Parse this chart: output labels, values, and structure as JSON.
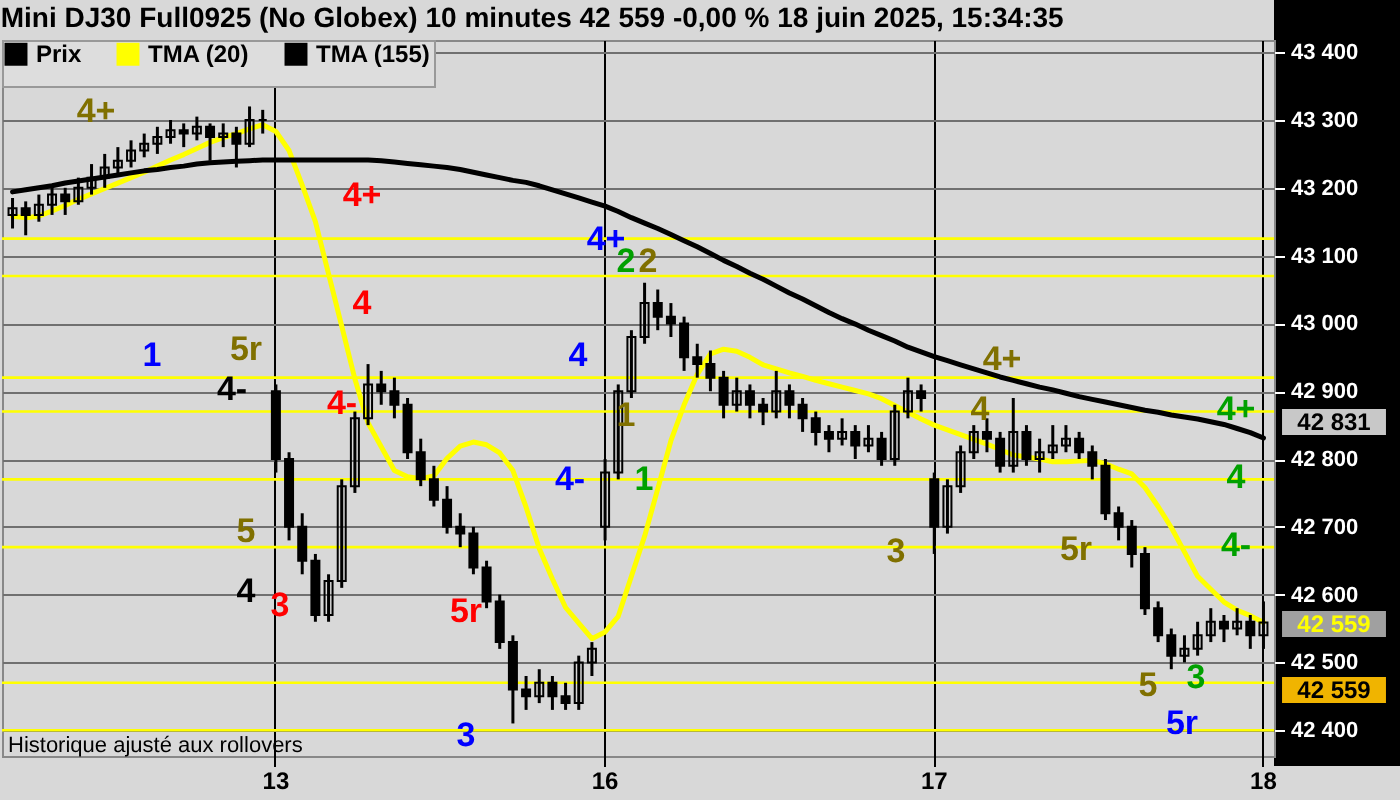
{
  "chart_data": {
    "type": "candlestick",
    "title": "Mini DJ30 Full0925 (No Globex) 10 minutes 42 559 -0,00 % 18 juin 2025, 15:34:35",
    "categories": [
      null,
      null,
      null,
      null,
      null,
      null,
      null,
      null,
      null,
      null,
      null,
      null,
      null,
      null,
      null,
      null,
      null,
      null,
      null,
      null,
      "13",
      null,
      null,
      null,
      null,
      null,
      null,
      null,
      null,
      null,
      null,
      null,
      null,
      null,
      null,
      null,
      null,
      null,
      null,
      null,
      null,
      null,
      null,
      null,
      null,
      "16",
      null,
      null,
      null,
      null,
      null,
      null,
      null,
      null,
      null,
      null,
      null,
      null,
      null,
      null,
      null,
      null,
      null,
      null,
      null,
      null,
      null,
      null,
      null,
      null,
      "17",
      null,
      null,
      null,
      null,
      null,
      null,
      null,
      null,
      null,
      null,
      null,
      null,
      null,
      null,
      null,
      null,
      null,
      null,
      null,
      null,
      null,
      null,
      null,
      null,
      "18"
    ],
    "series": [
      {
        "name": "Prix",
        "type": "candlestick",
        "color": "#000000",
        "ohlc": [
          [
            43160,
            43185,
            43140,
            43170
          ],
          [
            43170,
            43180,
            43130,
            43160
          ],
          [
            43160,
            43190,
            43150,
            43175
          ],
          [
            43175,
            43205,
            43160,
            43190
          ],
          [
            43190,
            43200,
            43160,
            43180
          ],
          [
            43180,
            43215,
            43175,
            43200
          ],
          [
            43200,
            43235,
            43190,
            43215
          ],
          [
            43215,
            43250,
            43200,
            43230
          ],
          [
            43230,
            43260,
            43220,
            43240
          ],
          [
            43240,
            43270,
            43230,
            43255
          ],
          [
            43255,
            43280,
            43245,
            43265
          ],
          [
            43265,
            43290,
            43250,
            43275
          ],
          [
            43275,
            43300,
            43265,
            43285
          ],
          [
            43285,
            43295,
            43260,
            43280
          ],
          [
            43280,
            43305,
            43270,
            43290
          ],
          [
            43290,
            43295,
            43240,
            43275
          ],
          [
            43275,
            43295,
            43260,
            43280
          ],
          [
            43280,
            43290,
            43230,
            43265
          ],
          [
            43265,
            43320,
            43260,
            43300
          ],
          [
            43300,
            43315,
            43280,
            43300
          ],
          [
            42900,
            42910,
            42780,
            42800
          ],
          [
            42800,
            42810,
            42680,
            42700
          ],
          [
            42700,
            42720,
            42630,
            42650
          ],
          [
            42650,
            42660,
            42560,
            42570
          ],
          [
            42570,
            42630,
            42560,
            42620
          ],
          [
            42620,
            42770,
            42610,
            42760
          ],
          [
            42760,
            42870,
            42750,
            42860
          ],
          [
            42860,
            42940,
            42850,
            42910
          ],
          [
            42910,
            42930,
            42880,
            42900
          ],
          [
            42900,
            42920,
            42860,
            42880
          ],
          [
            42880,
            42890,
            42800,
            42810
          ],
          [
            42810,
            42830,
            42760,
            42770
          ],
          [
            42770,
            42790,
            42730,
            42740
          ],
          [
            42740,
            42760,
            42690,
            42700
          ],
          [
            42700,
            42720,
            42670,
            42690
          ],
          [
            42690,
            42700,
            42630,
            42640
          ],
          [
            42640,
            42650,
            42580,
            42590
          ],
          [
            42590,
            42600,
            42520,
            42530
          ],
          [
            42530,
            42540,
            42410,
            42460
          ],
          [
            42460,
            42480,
            42430,
            42450
          ],
          [
            42450,
            42490,
            42440,
            42470
          ],
          [
            42470,
            42480,
            42430,
            42450
          ],
          [
            42450,
            42470,
            42430,
            42440
          ],
          [
            42440,
            42510,
            42430,
            42500
          ],
          [
            42500,
            42530,
            42480,
            42520
          ],
          [
            42700,
            42800,
            42680,
            42780
          ],
          [
            42780,
            42910,
            42770,
            42900
          ],
          [
            42900,
            42990,
            42890,
            42980
          ],
          [
            42980,
            43060,
            42970,
            43030
          ],
          [
            43030,
            43050,
            42990,
            43010
          ],
          [
            43010,
            43030,
            42980,
            43000
          ],
          [
            43000,
            43010,
            42930,
            42950
          ],
          [
            42950,
            42970,
            42920,
            42940
          ],
          [
            42940,
            42960,
            42900,
            42920
          ],
          [
            42920,
            42930,
            42860,
            42880
          ],
          [
            42880,
            42920,
            42870,
            42900
          ],
          [
            42900,
            42910,
            42860,
            42880
          ],
          [
            42880,
            42890,
            42850,
            42870
          ],
          [
            42870,
            42930,
            42860,
            42900
          ],
          [
            42900,
            42910,
            42860,
            42880
          ],
          [
            42880,
            42890,
            42840,
            42860
          ],
          [
            42860,
            42870,
            42820,
            42840
          ],
          [
            42840,
            42850,
            42810,
            42830
          ],
          [
            42830,
            42860,
            42820,
            42840
          ],
          [
            42840,
            42850,
            42800,
            42820
          ],
          [
            42820,
            42850,
            42810,
            42830
          ],
          [
            42830,
            42840,
            42790,
            42800
          ],
          [
            42800,
            42880,
            42790,
            42870
          ],
          [
            42870,
            42920,
            42860,
            42900
          ],
          [
            42900,
            42910,
            42870,
            42890
          ],
          [
            42770,
            42780,
            42660,
            42700
          ],
          [
            42700,
            42770,
            42690,
            42760
          ],
          [
            42760,
            42820,
            42750,
            42810
          ],
          [
            42810,
            42850,
            42800,
            42840
          ],
          [
            42840,
            42860,
            42810,
            42830
          ],
          [
            42830,
            42840,
            42780,
            42790
          ],
          [
            42790,
            42890,
            42780,
            42840
          ],
          [
            42840,
            42850,
            42790,
            42800
          ],
          [
            42800,
            42830,
            42780,
            42810
          ],
          [
            42810,
            42850,
            42800,
            42820
          ],
          [
            42820,
            42850,
            42810,
            42830
          ],
          [
            42830,
            42840,
            42800,
            42810
          ],
          [
            42810,
            42820,
            42770,
            42790
          ],
          [
            42790,
            42800,
            42710,
            42720
          ],
          [
            42720,
            42730,
            42680,
            42700
          ],
          [
            42700,
            42710,
            42640,
            42660
          ],
          [
            42660,
            42670,
            42570,
            42580
          ],
          [
            42580,
            42590,
            42530,
            42540
          ],
          [
            42540,
            42550,
            42490,
            42510
          ],
          [
            42510,
            42540,
            42500,
            42520
          ],
          [
            42520,
            42560,
            42510,
            42540
          ],
          [
            42540,
            42580,
            42530,
            42560
          ],
          [
            42560,
            42570,
            42530,
            42550
          ],
          [
            42550,
            42580,
            42540,
            42560
          ],
          [
            42560,
            42570,
            42520,
            42540
          ],
          [
            42540,
            42590,
            42520,
            42559
          ]
        ]
      },
      {
        "name": "TMA (20)",
        "type": "line",
        "color": "#ffff00",
        "values": [
          43158,
          43156,
          43158,
          43166,
          43174,
          43183,
          43191,
          43199,
          43207,
          43215,
          43223,
          43232,
          43241,
          43249,
          43258,
          43267,
          43274,
          43280,
          43287,
          43293,
          43283,
          43255,
          43204,
          43150,
          43073,
          42996,
          42918,
          42853,
          42818,
          42783,
          42774,
          42771,
          42775,
          42801,
          42819,
          42825,
          42821,
          42809,
          42783,
          42729,
          42668,
          42623,
          42581,
          42558,
          42535,
          42545,
          42568,
          42627,
          42686,
          42756,
          42827,
          42880,
          42925,
          42955,
          42962,
          42959,
          42950,
          42939,
          42933,
          42927,
          42922,
          42916,
          42911,
          42906,
          42901,
          42896,
          42889,
          42879,
          42869,
          42859,
          42850,
          42843,
          42836,
          42829,
          42822,
          42814,
          42806,
          42803,
          42800,
          42796,
          42796,
          42797,
          42798,
          42793,
          42785,
          42778,
          42758,
          42730,
          42699,
          42663,
          42627,
          42608,
          42589,
          42577,
          42569,
          42559
        ]
      },
      {
        "name": "TMA (155)",
        "type": "line",
        "color": "#000000",
        "values": [
          43194,
          43197,
          43200,
          43203,
          43207,
          43210,
          43213,
          43216,
          43219,
          43222,
          43225,
          43227,
          43230,
          43232,
          43235,
          43237,
          43238,
          43239,
          43240,
          43241,
          43241,
          43241,
          43241,
          43241,
          43241,
          43241,
          43241,
          43241,
          43240,
          43238,
          43236,
          43234,
          43232,
          43230,
          43227,
          43223,
          43219,
          43215,
          43211,
          43208,
          43203,
          43197,
          43191,
          43185,
          43179,
          43173,
          43165,
          43156,
          43148,
          43140,
          43131,
          43122,
          43113,
          43103,
          43093,
          43084,
          43074,
          43065,
          43055,
          43045,
          43036,
          43026,
          43016,
          43007,
          42999,
          42990,
          42982,
          42974,
          42965,
          42958,
          42951,
          42945,
          42939,
          42933,
          42927,
          42921,
          42916,
          42911,
          42906,
          42902,
          42897,
          42892,
          42888,
          42884,
          42880,
          42876,
          42872,
          42869,
          42865,
          42862,
          42859,
          42855,
          42851,
          42845,
          42839,
          42831
        ]
      }
    ],
    "ylim": [
      42362,
      43418
    ],
    "yticks": [
      {
        "value": 42400,
        "label": "42 400"
      },
      {
        "value": 42500,
        "label": "42 500"
      },
      {
        "value": 42600,
        "label": "42 600"
      },
      {
        "value": 42700,
        "label": "42 700"
      },
      {
        "value": 42800,
        "label": "42 800"
      },
      {
        "value": 42900,
        "label": "42 900"
      },
      {
        "value": 43000,
        "label": "43 000"
      },
      {
        "value": 43100,
        "label": "43 100"
      },
      {
        "value": 43200,
        "label": "43 200"
      },
      {
        "value": 43300,
        "label": "43 300"
      },
      {
        "value": 43400,
        "label": "43 400"
      }
    ],
    "grid": true,
    "legend": "top left",
    "ref_lines": [
      {
        "axis": "y",
        "value": 43125,
        "color": "#ffff00"
      },
      {
        "axis": "y",
        "value": 43070,
        "color": "#ffff00"
      },
      {
        "axis": "y",
        "value": 42920,
        "color": "#ffff00"
      },
      {
        "axis": "y",
        "value": 42870,
        "color": "#ffff00"
      },
      {
        "axis": "y",
        "value": 42770,
        "color": "#ffff00"
      },
      {
        "axis": "y",
        "value": 42670,
        "color": "#ffff00"
      },
      {
        "axis": "y",
        "value": 42470,
        "color": "#ffff00"
      },
      {
        "axis": "y",
        "value": 42400,
        "color": "#ffff00"
      }
    ],
    "annotations": [
      "Historique ajusté aux rollovers",
      "4+",
      "4+",
      "4",
      "1",
      "5r",
      "4-",
      "4-",
      "5",
      "4",
      "3",
      "5r",
      "3",
      "4+",
      "2",
      "2",
      "4",
      "1",
      "4-",
      "1",
      "4+",
      "4",
      "3",
      "5r",
      "4+",
      "4",
      "4-",
      "5",
      "3",
      "5r",
      "42 831",
      "42 559",
      "42 559"
    ]
  }
}
